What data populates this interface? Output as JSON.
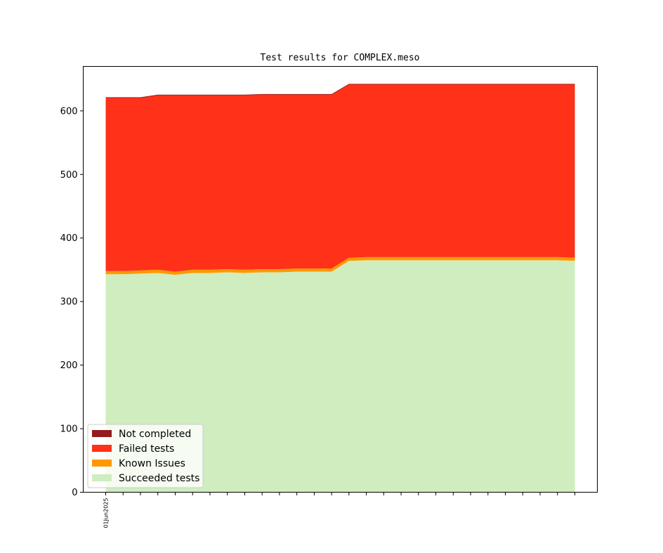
{
  "chart_data": {
    "type": "area",
    "title": "Test results for COMPLEX.meso",
    "xlabel": "",
    "ylabel": "",
    "ylim": [
      0,
      670
    ],
    "yticks": [
      0,
      100,
      200,
      300,
      400,
      500,
      600
    ],
    "x_tick_labels": [
      "01Jun2025"
    ],
    "grid": false,
    "legend_position": "lower-left",
    "num_points": 28,
    "series": [
      {
        "name": "Succeeded tests",
        "color": "#cfedbf",
        "values": [
          343,
          343,
          344,
          345,
          342,
          345,
          345,
          346,
          345,
          346,
          346,
          347,
          347,
          347,
          364,
          365,
          365,
          365,
          365,
          365,
          365,
          365,
          365,
          365,
          365,
          365,
          365,
          364
        ]
      },
      {
        "name": "Known Issues",
        "color": "#ff9900",
        "values": [
          5,
          5,
          5,
          5,
          5,
          5,
          5,
          5,
          5,
          5,
          5,
          5,
          5,
          5,
          5,
          5,
          5,
          5,
          5,
          5,
          5,
          5,
          5,
          5,
          5,
          5,
          5,
          5
        ]
      },
      {
        "name": "Failed tests",
        "color": "#ff3119",
        "values": [
          273,
          273,
          272,
          275,
          278,
          275,
          275,
          274,
          275,
          275,
          275,
          274,
          274,
          274,
          273,
          272,
          272,
          272,
          272,
          272,
          272,
          272,
          272,
          272,
          272,
          272,
          272,
          273
        ]
      },
      {
        "name": "Not completed",
        "color": "#951a1d",
        "values": [
          0,
          0,
          0,
          0,
          0,
          0,
          0,
          0,
          0,
          0,
          0,
          0,
          0,
          0,
          0,
          0,
          0,
          0,
          0,
          0,
          0,
          0,
          0,
          0,
          0,
          0,
          0,
          0
        ]
      }
    ],
    "legend_order": [
      "Not completed",
      "Failed tests",
      "Known Issues",
      "Succeeded tests"
    ]
  }
}
